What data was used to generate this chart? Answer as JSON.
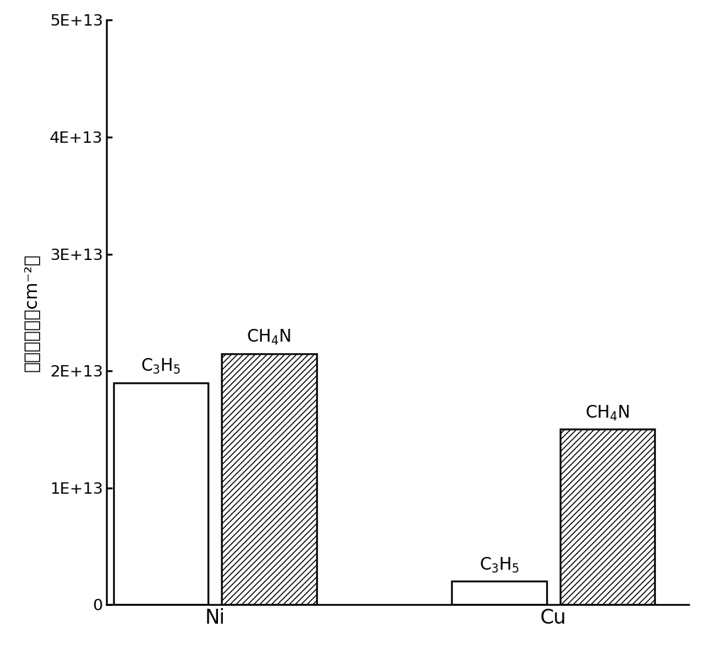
{
  "groups": [
    "Ni",
    "Cu"
  ],
  "bar1_label_main": "C",
  "bar1_label_sub": "3",
  "bar1_label_rest": "H",
  "bar1_label_sub2": "5",
  "bar2_label_main": "CH",
  "bar2_label_sub": "4",
  "bar2_label_rest": "N",
  "bar1_values": [
    19000000000000.0,
    2000000000000.0
  ],
  "bar2_values": [
    21500000000000.0,
    15000000000000.0
  ],
  "bar1_color": "#ffffff",
  "bar2_hatch": "////",
  "bar2_facecolor": "#ffffff",
  "ylabel_chinese": "捕获金属量",
  "ylabel_unit": "（cm⁻²）",
  "ylim": [
    0,
    50000000000000.0
  ],
  "yticks": [
    0,
    10000000000000.0,
    20000000000000.0,
    30000000000000.0,
    40000000000000.0,
    50000000000000.0
  ],
  "ytick_labels": [
    "0",
    "1E+13",
    "2E+13",
    "3E+13",
    "4E+13",
    "5E+13"
  ],
  "group_positions": [
    1.5,
    4.0
  ],
  "bar_width": 0.7,
  "bar_gap": 0.8,
  "background_color": "#ffffff",
  "bar_edgecolor": "#000000",
  "tick_fontsize": 16,
  "ylabel_fontsize": 18,
  "group_label_fontsize": 20,
  "annotation_fontsize": 17
}
